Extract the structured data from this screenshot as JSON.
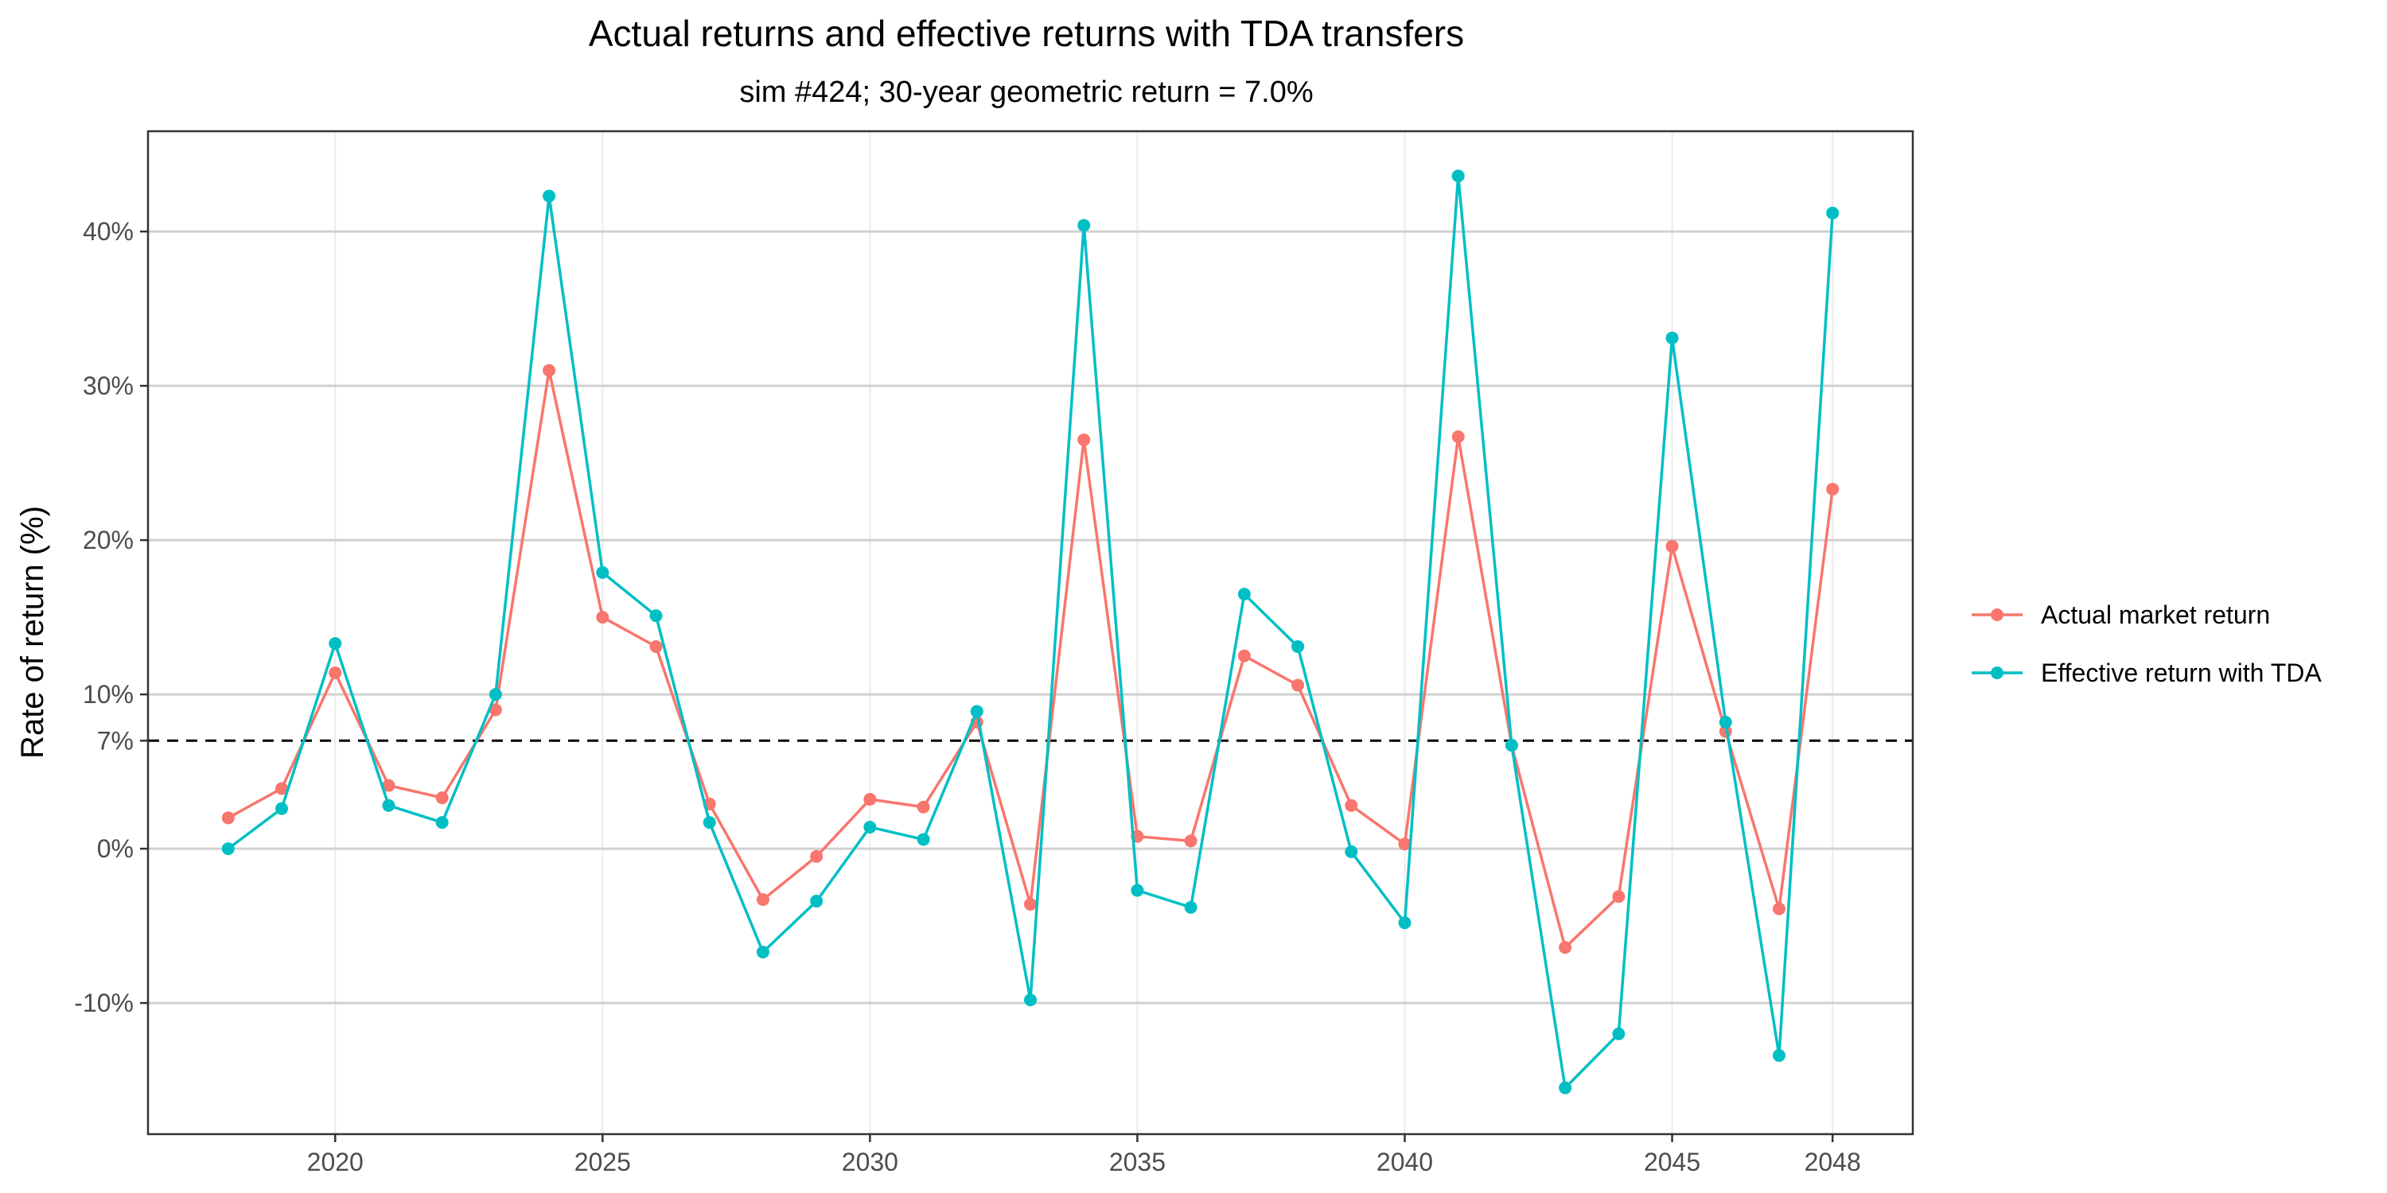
{
  "chart_data": {
    "type": "line",
    "title": "Actual returns and effective returns with TDA transfers",
    "subtitle": "sim #424; 30-year geometric return = 7.0%",
    "xlabel": "",
    "ylabel": "Rate of return (%)",
    "x": [
      2018,
      2019,
      2020,
      2021,
      2022,
      2023,
      2024,
      2025,
      2026,
      2027,
      2028,
      2029,
      2030,
      2031,
      2032,
      2033,
      2034,
      2035,
      2036,
      2037,
      2038,
      2039,
      2040,
      2041,
      2042,
      2043,
      2044,
      2045,
      2046,
      2047,
      2048
    ],
    "xlim": [
      2016.5,
      2049.5
    ],
    "ylim": [
      -18.5,
      46.5
    ],
    "x_ticks": [
      2020,
      2025,
      2030,
      2035,
      2040,
      2045,
      2048
    ],
    "x_tick_labels": [
      "2020",
      "2025",
      "2030",
      "2035",
      "2040",
      "2045",
      "2048"
    ],
    "x_grid_major": [
      2020,
      2025,
      2030,
      2035,
      2040,
      2045,
      2048
    ],
    "y_ticks": [
      -10,
      0,
      7,
      10,
      20,
      30,
      40
    ],
    "y_tick_labels": [
      "-10%",
      "0%",
      "7%",
      "10%",
      "20%",
      "30%",
      "40%"
    ],
    "y_grid_major": [
      -10,
      0,
      10,
      20,
      30,
      40
    ],
    "reference_line": {
      "y": 7,
      "style": "dashed",
      "color": "#000000"
    },
    "grid": true,
    "legend_position": "right",
    "series": [
      {
        "name": "Actual market return",
        "color": "#F8766D",
        "values": [
          2.0,
          3.9,
          11.4,
          4.1,
          3.3,
          9.0,
          31.0,
          15.0,
          13.1,
          2.9,
          -3.3,
          -0.5,
          3.2,
          2.7,
          8.2,
          -3.6,
          26.5,
          0.8,
          0.5,
          12.5,
          10.6,
          2.8,
          0.3,
          26.7,
          6.7,
          -6.4,
          -3.1,
          19.6,
          7.6,
          -3.9,
          23.3
        ]
      },
      {
        "name": "Effective return with TDA",
        "color": "#00BFC4",
        "values": [
          0.0,
          2.6,
          13.3,
          2.8,
          1.7,
          10.0,
          42.3,
          17.9,
          15.1,
          1.7,
          -6.7,
          -3.4,
          1.4,
          0.6,
          8.9,
          -9.8,
          40.4,
          -2.7,
          -3.8,
          16.5,
          13.1,
          -0.2,
          -4.8,
          43.6,
          6.7,
          -15.5,
          -12.0,
          33.1,
          8.2,
          -13.4,
          41.2
        ]
      }
    ]
  }
}
